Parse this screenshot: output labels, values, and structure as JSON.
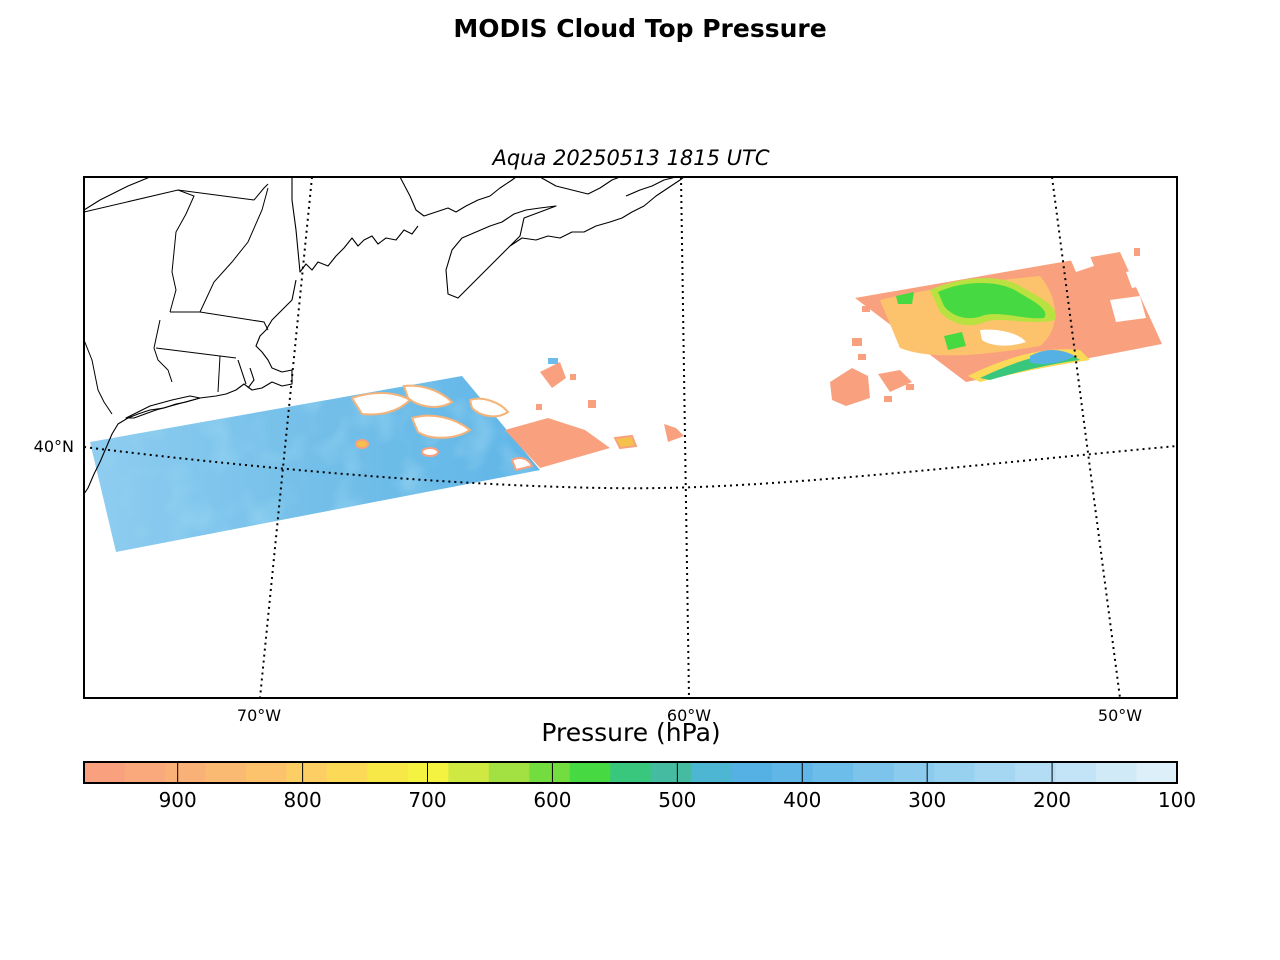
{
  "figure": {
    "title": "MODIS Cloud Top Pressure",
    "subtitle": "Aqua 20250513 1815 UTC"
  },
  "map": {
    "lat_labels": [
      "40°N"
    ],
    "lon_labels": [
      "70°W",
      "60°W",
      "50°W"
    ],
    "gridline_style": "dotted",
    "coastlines": true,
    "state_borders": true
  },
  "colorbar": {
    "label": "Pressure (hPa)",
    "tick_labels": [
      "900",
      "800",
      "700",
      "600",
      "500",
      "400",
      "300",
      "200",
      "100"
    ],
    "range": [
      975,
      100
    ],
    "colors": [
      "#f9a17f",
      "#f9a97b",
      "#fab177",
      "#fbba72",
      "#fcc36c",
      "#fcce64",
      "#fcda57",
      "#f7e848",
      "#f4f341",
      "#cfe842",
      "#a3e142",
      "#73dc3e",
      "#46d942",
      "#38c77d",
      "#45bca2",
      "#4db6d2",
      "#55b1e4",
      "#60b6e7",
      "#6dbdea",
      "#7cc4ec",
      "#8acbee",
      "#97d1f0",
      "#a5d7f2",
      "#b3ddf4",
      "#c2e4f6",
      "#d0eaf8",
      "#ddf0fa"
    ]
  },
  "chart_data": {
    "type": "heatmap",
    "title": "MODIS Cloud Top Pressure",
    "variable": "Pressure (hPa)",
    "value_range": [
      975,
      100
    ],
    "swaths": [
      {
        "region": "southwest swath off US east coast",
        "dominant_values_hPa": [
          300,
          400
        ],
        "edge_values_hPa": [
          900,
          950
        ]
      },
      {
        "region": "northeast swath",
        "dominant_values_hPa": [
          900,
          950
        ],
        "embedded_values_hPa": [
          500,
          550
        ]
      }
    ]
  }
}
